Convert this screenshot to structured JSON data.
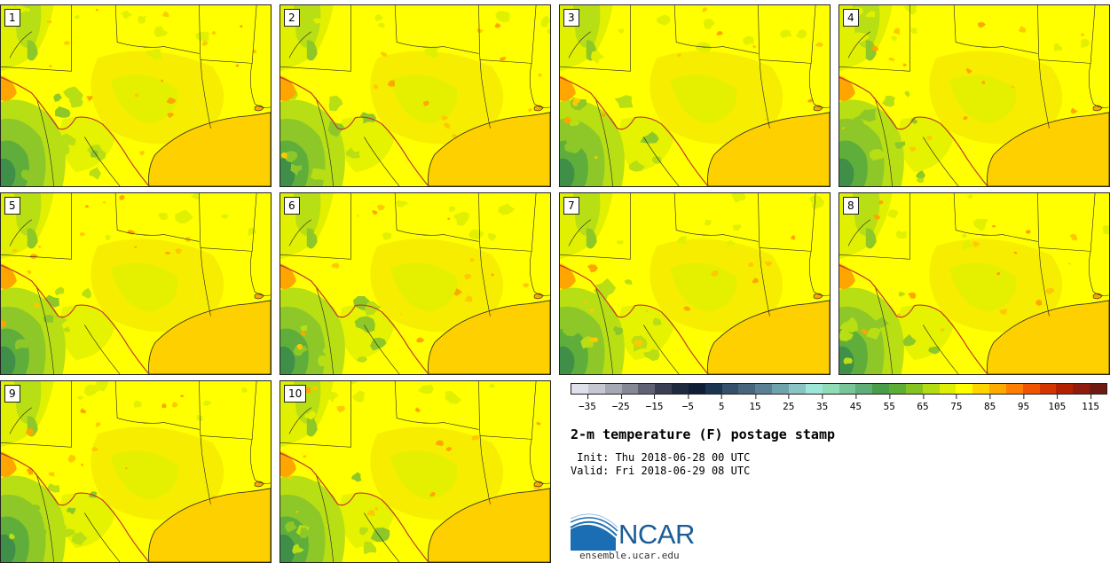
{
  "stamps": [
    {
      "label": "1"
    },
    {
      "label": "2"
    },
    {
      "label": "3"
    },
    {
      "label": "4"
    },
    {
      "label": "5"
    },
    {
      "label": "6"
    },
    {
      "label": "7"
    },
    {
      "label": "8"
    },
    {
      "label": "9"
    },
    {
      "label": "10"
    }
  ],
  "colorbar": {
    "colors": [
      "#dfe1ea",
      "#c5c7d1",
      "#a6a9b4",
      "#858895",
      "#5e6273",
      "#3a3f53",
      "#1d2a40",
      "#0f1e35",
      "#1b3551",
      "#34506a",
      "#47667e",
      "#5a8193",
      "#6fa3ac",
      "#8ac4c4",
      "#9de6d8",
      "#8fdcb7",
      "#78c59a",
      "#5daf77",
      "#4a9d48",
      "#5ead35",
      "#85c322",
      "#b3dc12",
      "#ddef05",
      "#ffff00",
      "#ffd500",
      "#ffaa00",
      "#ff7d00",
      "#f05400",
      "#d43500",
      "#b22000",
      "#8f1a0d",
      "#6e1a10"
    ],
    "ticks": [
      "−35",
      "−25",
      "−15",
      "−5",
      "5",
      "15",
      "25",
      "35",
      "45",
      "55",
      "65",
      "75",
      "85",
      "95",
      "105",
      "115"
    ],
    "min": -40,
    "max": 120
  },
  "title": "2-m temperature (F) postage stamp",
  "init_line": " Init: Thu 2018-06-28 00 UTC",
  "valid_line": "Valid: Fri 2018-06-29 08 UTC",
  "logo": {
    "text": "NCAR",
    "color": "#1b5d96"
  },
  "site": "ensemble.ucar.edu",
  "map_colors": {
    "base": "#ffff00",
    "warm": "#f6eb00",
    "cool": "#e0f000",
    "coolest": "#b8de14",
    "green1": "#8ec828",
    "green2": "#5fae3c",
    "green3": "#3f8f48",
    "hot": "#ffc800",
    "hotter": "#ffa500",
    "gulf": "#ffd000",
    "border": "#222222",
    "river": "#c0392b"
  }
}
